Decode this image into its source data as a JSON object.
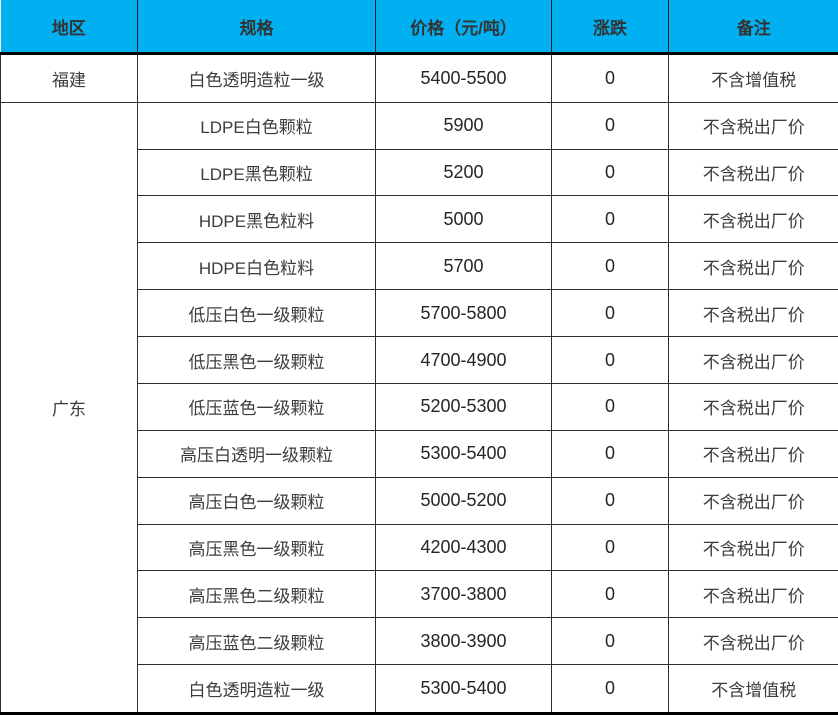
{
  "chart_data": {
    "type": "table",
    "title": "",
    "columns": [
      "地区",
      "规格",
      "价格（元/吨）",
      "涨跌",
      "备注"
    ],
    "rows": [
      [
        "福建",
        "白色透明造粒一级",
        "5400-5500",
        "0",
        "不含增值税"
      ],
      [
        "广东",
        "LDPE白色颗粒",
        "5900",
        "0",
        "不含税出厂价"
      ],
      [
        "广东",
        "LDPE黑色颗粒",
        "5200",
        "0",
        "不含税出厂价"
      ],
      [
        "广东",
        "HDPE黑色粒料",
        "5000",
        "0",
        "不含税出厂价"
      ],
      [
        "广东",
        "HDPE白色粒料",
        "5700",
        "0",
        "不含税出厂价"
      ],
      [
        "广东",
        "低压白色一级颗粒",
        "5700-5800",
        "0",
        "不含税出厂价"
      ],
      [
        "广东",
        "低压黑色一级颗粒",
        "4700-4900",
        "0",
        "不含税出厂价"
      ],
      [
        "广东",
        "低压蓝色一级颗粒",
        "5200-5300",
        "0",
        "不含税出厂价"
      ],
      [
        "广东",
        "高压白透明一级颗粒",
        "5300-5400",
        "0",
        "不含税出厂价"
      ],
      [
        "广东",
        "高压白色一级颗粒",
        "5000-5200",
        "0",
        "不含税出厂价"
      ],
      [
        "广东",
        "高压黑色一级颗粒",
        "4200-4300",
        "0",
        "不含税出厂价"
      ],
      [
        "广东",
        "高压黑色二级颗粒",
        "3700-3800",
        "0",
        "不含税出厂价"
      ],
      [
        "广东",
        "高压蓝色二级颗粒",
        "3800-3900",
        "0",
        "不含税出厂价"
      ],
      [
        "广东",
        "白色透明造粒一级",
        "5300-5400",
        "0",
        "不含增值税"
      ]
    ],
    "region_groups": [
      {
        "region": "福建",
        "row_count": 1
      },
      {
        "region": "广东",
        "row_count": 13
      }
    ],
    "colors": {
      "header_background": "#00b0f0",
      "header_text": "#333333",
      "body_text": "#3c3c3c",
      "border": "#2e2e2e",
      "thick_border": "#000000"
    }
  }
}
